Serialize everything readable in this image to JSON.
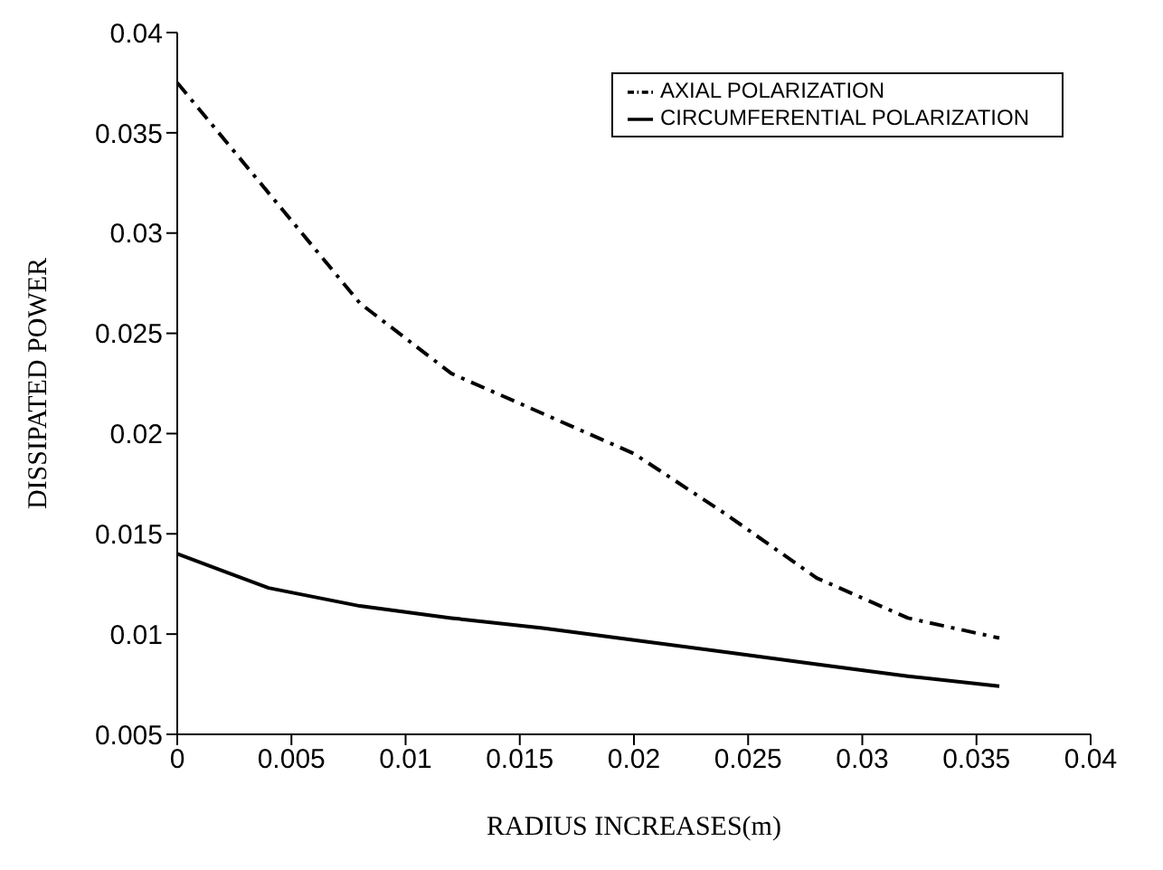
{
  "chart_data": {
    "type": "line",
    "xlabel": "RADIUS INCREASES(m)",
    "ylabel": "DISSIPATED POWER",
    "x": [
      0,
      0.004,
      0.008,
      0.012,
      0.016,
      0.02,
      0.024,
      0.028,
      0.032,
      0.036
    ],
    "series": [
      {
        "name": "AXIAL POLARIZATION",
        "color": "#000000",
        "line_style": "dashdot",
        "values": [
          0.0375,
          0.032,
          0.0265,
          0.023,
          0.021,
          0.019,
          0.016,
          0.0128,
          0.0108,
          0.0098
        ]
      },
      {
        "name": "CIRCUMFERENTIAL POLARIZATION",
        "color": "#000000",
        "line_style": "solid",
        "values": [
          0.014,
          0.0123,
          0.0114,
          0.0108,
          0.0103,
          0.0097,
          0.0091,
          0.0085,
          0.0079,
          0.0074
        ]
      }
    ],
    "xlim": [
      0,
      0.04
    ],
    "xticks": [
      0,
      0.005,
      0.01,
      0.015,
      0.02,
      0.025,
      0.03,
      0.035,
      0.04
    ],
    "ylim": [
      0.005,
      0.04
    ],
    "yticks": [
      0.005,
      0.01,
      0.015,
      0.02,
      0.025,
      0.03,
      0.035,
      0.04
    ],
    "grid": false,
    "legend": "top right",
    "marker": "none"
  }
}
